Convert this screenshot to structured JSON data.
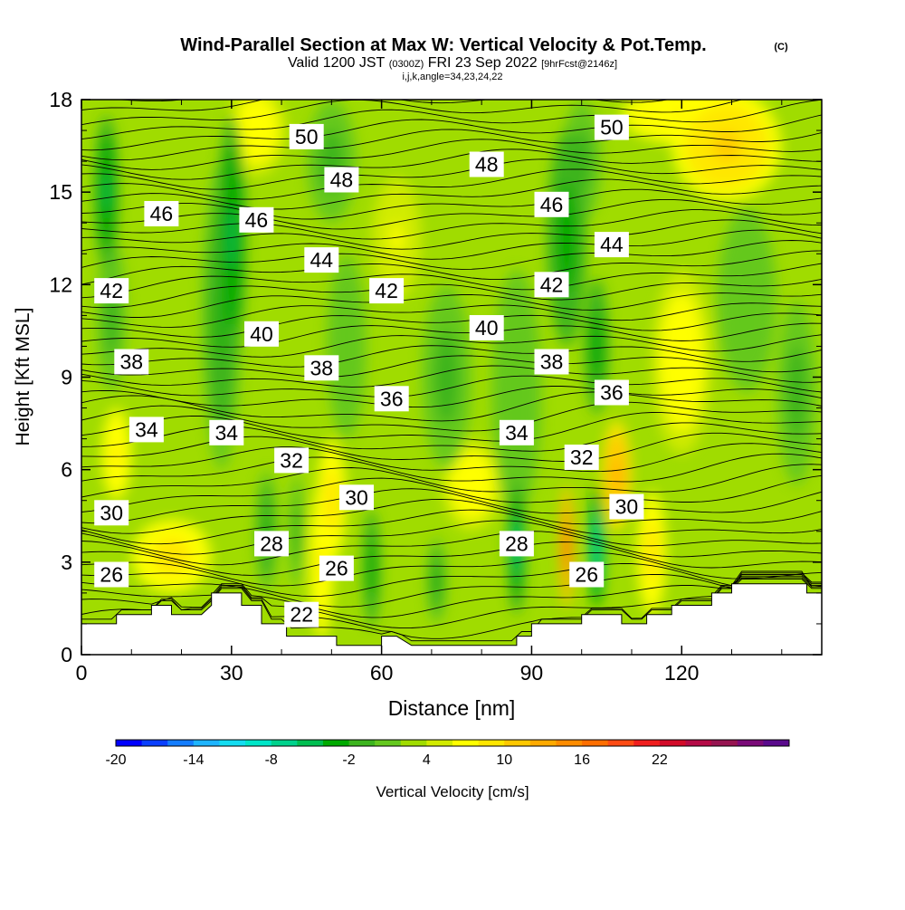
{
  "chart_data": {
    "type": "heatmap",
    "title": "Wind-Parallel Section at Max W: Vertical Velocity & Pot.Temp.",
    "title_mark": "(C)",
    "subtitle_valid": "Valid 1200 JST",
    "subtitle_utc": "(0300Z)",
    "subtitle_date": "FRI 23 Sep 2022",
    "subtitle_fcst": "[9hrFcst@2146z]",
    "subtitle_index": "i,j,k,angle=34,23,24,22",
    "xlabel": "Distance [nm]",
    "ylabel": "Height [Kft MSL]",
    "xlim": [
      0,
      148
    ],
    "ylim": [
      0,
      18
    ],
    "x_ticks": [
      "0",
      "30",
      "60",
      "90",
      "120"
    ],
    "y_ticks": [
      "0",
      "3",
      "6",
      "9",
      "12",
      "15",
      "18"
    ],
    "colorbar": {
      "label": "Vertical Velocity [cm/s]",
      "tick_labels": [
        "-20",
        "-14",
        "-8",
        "-2",
        "4",
        "10",
        "16",
        "22"
      ],
      "colors": [
        "#0000ff",
        "#0a3fff",
        "#147dff",
        "#1eb4ff",
        "#14dcf0",
        "#00e6c8",
        "#00d28c",
        "#00be50",
        "#00aa00",
        "#3cb41e",
        "#64c81e",
        "#a0dc00",
        "#d2eb00",
        "#ffff00",
        "#ffe600",
        "#ffc800",
        "#ffaa00",
        "#ff8c00",
        "#ff6e00",
        "#ff4b14",
        "#f01e1e",
        "#d20a28",
        "#b40a46",
        "#961450",
        "#7a0a78",
        "#5a0a8c"
      ]
    },
    "wind_parallel": "Max W",
    "potential_temperature_labels": [
      {
        "value": "22",
        "x": 44,
        "y": 1.3
      },
      {
        "value": "26",
        "x": 6,
        "y": 2.6
      },
      {
        "value": "26",
        "x": 51,
        "y": 2.8
      },
      {
        "value": "26",
        "x": 101,
        "y": 2.6
      },
      {
        "value": "28",
        "x": 38,
        "y": 3.6
      },
      {
        "value": "28",
        "x": 87,
        "y": 3.6
      },
      {
        "value": "30",
        "x": 6,
        "y": 4.6
      },
      {
        "value": "30",
        "x": 55,
        "y": 5.1
      },
      {
        "value": "30",
        "x": 109,
        "y": 4.8
      },
      {
        "value": "32",
        "x": 42,
        "y": 6.3
      },
      {
        "value": "32",
        "x": 100,
        "y": 6.4
      },
      {
        "value": "34",
        "x": 13,
        "y": 7.3
      },
      {
        "value": "34",
        "x": 29,
        "y": 7.2
      },
      {
        "value": "34",
        "x": 87,
        "y": 7.2
      },
      {
        "value": "36",
        "x": 62,
        "y": 8.3
      },
      {
        "value": "36",
        "x": 106,
        "y": 8.5
      },
      {
        "value": "38",
        "x": 10,
        "y": 9.5
      },
      {
        "value": "38",
        "x": 48,
        "y": 9.3
      },
      {
        "value": "38",
        "x": 94,
        "y": 9.5
      },
      {
        "value": "40",
        "x": 36,
        "y": 10.4
      },
      {
        "value": "40",
        "x": 81,
        "y": 10.6
      },
      {
        "value": "42",
        "x": 6,
        "y": 11.8
      },
      {
        "value": "42",
        "x": 61,
        "y": 11.8
      },
      {
        "value": "42",
        "x": 94,
        "y": 12.0
      },
      {
        "value": "44",
        "x": 48,
        "y": 12.8
      },
      {
        "value": "44",
        "x": 106,
        "y": 13.3
      },
      {
        "value": "46",
        "x": 16,
        "y": 14.3
      },
      {
        "value": "46",
        "x": 35,
        "y": 14.1
      },
      {
        "value": "46",
        "x": 94,
        "y": 14.6
      },
      {
        "value": "48",
        "x": 52,
        "y": 15.4
      },
      {
        "value": "48",
        "x": 81,
        "y": 15.9
      },
      {
        "value": "50",
        "x": 45,
        "y": 16.8
      },
      {
        "value": "50",
        "x": 106,
        "y": 17.1
      }
    ],
    "vertical_velocity_features": [
      {
        "x": 30,
        "y": 13.5,
        "w": -9,
        "rx": 3,
        "ry": 4
      },
      {
        "x": 28,
        "y": 11.0,
        "w": -7,
        "rx": 4,
        "ry": 5
      },
      {
        "x": 5,
        "y": 15.0,
        "w": -9,
        "rx": 2.5,
        "ry": 2.5
      },
      {
        "x": 6,
        "y": 11.0,
        "w": -5,
        "rx": 3,
        "ry": 2.5
      },
      {
        "x": 50,
        "y": 16.0,
        "w": -5,
        "rx": 5,
        "ry": 2
      },
      {
        "x": 53,
        "y": 10.0,
        "w": -4,
        "rx": 4,
        "ry": 3
      },
      {
        "x": 73,
        "y": 9.0,
        "w": -5,
        "rx": 5,
        "ry": 3
      },
      {
        "x": 87,
        "y": 8.5,
        "w": -4,
        "rx": 5,
        "ry": 4
      },
      {
        "x": 97,
        "y": 13.5,
        "w": -8,
        "rx": 4,
        "ry": 3.5
      },
      {
        "x": 103,
        "y": 10.0,
        "w": -8,
        "rx": 2.5,
        "ry": 2.2
      },
      {
        "x": 100,
        "y": 16.0,
        "w": -5,
        "rx": 4,
        "ry": 2
      },
      {
        "x": 37,
        "y": 4.0,
        "w": -7,
        "rx": 2.3,
        "ry": 2
      },
      {
        "x": 43,
        "y": 4.0,
        "w": -5,
        "rx": 1.6,
        "ry": 1.8
      },
      {
        "x": 58,
        "y": 2.8,
        "w": -8,
        "rx": 1.8,
        "ry": 1.9
      },
      {
        "x": 71,
        "y": 2.4,
        "w": -7,
        "rx": 2,
        "ry": 1.4
      },
      {
        "x": 87,
        "y": 3.5,
        "w": -11,
        "rx": 2,
        "ry": 2.2
      },
      {
        "x": 103,
        "y": 3.5,
        "w": -12,
        "rx": 1.7,
        "ry": 2
      },
      {
        "x": 143,
        "y": 8.5,
        "w": -5,
        "rx": 4,
        "ry": 3
      },
      {
        "x": 133,
        "y": 11.5,
        "w": -4,
        "rx": 6,
        "ry": 3
      },
      {
        "x": 129,
        "y": 16.5,
        "w": 6,
        "rx": 11,
        "ry": 1.8
      },
      {
        "x": 122,
        "y": 17.5,
        "w": 4,
        "rx": 14,
        "ry": 1
      },
      {
        "x": 18,
        "y": 3.2,
        "w": 5,
        "rx": 8,
        "ry": 1.2
      },
      {
        "x": 50,
        "y": 5.0,
        "w": 5,
        "rx": 3,
        "ry": 2
      },
      {
        "x": 48,
        "y": 3.0,
        "w": 4,
        "rx": 2.5,
        "ry": 2.5
      },
      {
        "x": 97,
        "y": 3.5,
        "w": 14,
        "rx": 1.4,
        "ry": 2
      },
      {
        "x": 107,
        "y": 5.8,
        "w": 9,
        "rx": 3,
        "ry": 1.8
      },
      {
        "x": 114,
        "y": 3.3,
        "w": 5,
        "rx": 3,
        "ry": 2
      },
      {
        "x": 78,
        "y": 5.5,
        "w": 3,
        "rx": 6,
        "ry": 1.5
      },
      {
        "x": 7,
        "y": 6.5,
        "w": 4,
        "rx": 3,
        "ry": 1.5
      },
      {
        "x": 35,
        "y": 17.0,
        "w": 3,
        "rx": 6,
        "ry": 1.5
      },
      {
        "x": 120,
        "y": 9.5,
        "w": 3,
        "rx": 6,
        "ry": 3
      },
      {
        "x": 63,
        "y": 13.5,
        "w": 2,
        "rx": 5,
        "ry": 2
      }
    ],
    "terrain_profile": [
      [
        0,
        1.0
      ],
      [
        7,
        1.0
      ],
      [
        7,
        1.3
      ],
      [
        14,
        1.3
      ],
      [
        14,
        1.6
      ],
      [
        18,
        1.6
      ],
      [
        18,
        1.3
      ],
      [
        24,
        1.3
      ],
      [
        26,
        1.6
      ],
      [
        26,
        2.0
      ],
      [
        32,
        2.0
      ],
      [
        32,
        1.6
      ],
      [
        36,
        1.6
      ],
      [
        36,
        1.0
      ],
      [
        41,
        1.0
      ],
      [
        41,
        0.6
      ],
      [
        51,
        0.6
      ],
      [
        51,
        0.3
      ],
      [
        60,
        0.3
      ],
      [
        60,
        0.6
      ],
      [
        63,
        0.6
      ],
      [
        66,
        0.3
      ],
      [
        80,
        0.3
      ],
      [
        87,
        0.3
      ],
      [
        87,
        0.6
      ],
      [
        90,
        0.6
      ],
      [
        90,
        1.0
      ],
      [
        100,
        1.0
      ],
      [
        100,
        1.3
      ],
      [
        108,
        1.3
      ],
      [
        108,
        1.0
      ],
      [
        113,
        1.0
      ],
      [
        113,
        1.3
      ],
      [
        118,
        1.3
      ],
      [
        118,
        1.6
      ],
      [
        126,
        1.6
      ],
      [
        126,
        2.0
      ],
      [
        130,
        2.0
      ],
      [
        130,
        2.3
      ],
      [
        145,
        2.3
      ],
      [
        145,
        2.0
      ],
      [
        148,
        2.0
      ]
    ]
  }
}
